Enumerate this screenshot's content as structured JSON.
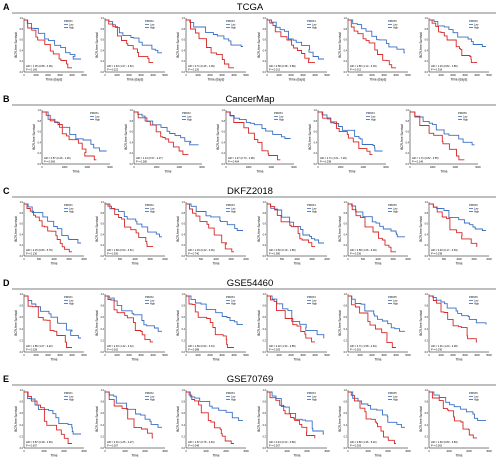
{
  "figure": {
    "rows": [
      {
        "letter": "A",
        "dataset": "TCGA",
        "x_ticks": [
          "0",
          "1000",
          "2000",
          "3000",
          "4000",
          "5000"
        ],
        "x_label": "Time (days)",
        "y_ticks": [
          "1.0",
          "0.8",
          "0.6",
          "0.4",
          "0.2",
          "0.0"
        ],
        "y_label": "BCR-free Survival",
        "panels": [
          {
            "gene": "PRDX1",
            "hr": "HR = 1.35 (0.88 - 2.06)",
            "p": "P = 0.166"
          },
          {
            "gene": "PRDX2",
            "hr": "HR = 1.64 (1.07 - 2.51)",
            "p": "P = 0.022"
          },
          {
            "gene": "PRDX3",
            "hr": "HR = 0.71 (0.46 - 1.09)",
            "p": "P = 0.120"
          },
          {
            "gene": "PRDX4",
            "hr": "HR = 0.58 (0.38 - 0.89)",
            "p": "P = 0.012"
          },
          {
            "gene": "PRDX5",
            "hr": "HR = 1.86 (1.14 - 3.03)",
            "p": "P = 0.012"
          },
          {
            "gene": "PRDX6",
            "hr": "HR = 1.23 (0.82 - 1.86)",
            "p": "P = 0.318"
          }
        ]
      },
      {
        "letter": "B",
        "dataset": "CancerMap",
        "x_ticks": [
          "0",
          "2000",
          "4000",
          "6000"
        ],
        "x_label": "Time",
        "y_ticks": [
          "1.0",
          "0.8",
          "0.6",
          "0.4",
          "0.2",
          "0.0"
        ],
        "y_label": "BCR-free Survival",
        "panels": [
          {
            "gene": "PRDX1",
            "hr": "HR = 0.57 (0.26 - 1.26)",
            "p": "P = 0.066"
          },
          {
            "gene": "PRDX2",
            "hr": "HR = 1.14 (0.57 - 2.27)",
            "p": "P = 0.280"
          },
          {
            "gene": "PRDX3",
            "hr": "HR = 1.47 (0.73 - 2.96)",
            "p": "P = 0.464"
          },
          {
            "gene": "PRDX4",
            "hr": "HR = 2.71 (1.01 - 7.29)",
            "p": "P = 0.038"
          },
          {
            "gene": "PRDX6",
            "hr": "HR = 1.71 (0.82 - 3.55)",
            "p": "P = 0.146"
          }
        ]
      },
      {
        "letter": "C",
        "dataset": "DKFZ2018",
        "x_ticks": [
          "0",
          "500",
          "1000",
          "1500",
          "2000"
        ],
        "x_label": "Time",
        "y_ticks": [
          "1.0",
          "0.8",
          "0.6",
          "0.4",
          "0.2",
          "0.0"
        ],
        "y_label": "BCR-free Survival",
        "panels": [
          {
            "gene": "PRDX1",
            "hr": "HR = 2.15 (0.80 - 5.79)",
            "p": "P = 0.130"
          },
          {
            "gene": "PRDX2",
            "hr": "HR = 1.69 (0.63 - 4.51)",
            "p": "P = 0.300"
          },
          {
            "gene": "PRDX3",
            "hr": "HR = 1.19 (0.42 - 3.36)",
            "p": "P = 0.740"
          },
          {
            "gene": "PRDX4",
            "hr": "HR = 0.60 (0.19 - 1.86)",
            "p": "P = 0.380"
          },
          {
            "gene": "PRDX5",
            "hr": "HR = 2.58 (1.06 - 6.29)",
            "p": "P = 0.036"
          },
          {
            "gene": "PRDX6",
            "hr": "HR = 0.40 (0.17 - 0.94)",
            "p": "P = 0.038"
          }
        ]
      },
      {
        "letter": "D",
        "dataset": "GSE54460",
        "x_ticks": [
          "0",
          "1000",
          "2000",
          "3000",
          "4000",
          "5000"
        ],
        "x_label": "Time",
        "y_ticks": [
          "1.0",
          "0.8",
          "0.6",
          "0.4",
          "0.2",
          "0.0"
        ],
        "y_label": "BCR-free Survival",
        "panels": [
          {
            "gene": "PRDX1",
            "hr": "HR = 1.85 (1.07 - 3.22)",
            "p": "P = 0.028"
          },
          {
            "gene": "PRDX2",
            "hr": "HR = 2.33 (1.42 - 4.12)",
            "p": "P = 0.002"
          },
          {
            "gene": "PRDX3",
            "hr": "HR = 1.69 (0.93 - 3.13)",
            "p": "P = 0.088"
          },
          {
            "gene": "PRDX4",
            "hr": "HR = 2.22 (1.34 - 3.85)",
            "p": "P = 0.003"
          },
          {
            "gene": "PRDX5",
            "hr": "HR = 2.71 (1.58 - 4.64)",
            "p": "P < 0.001"
          },
          {
            "gene": "PRDX6",
            "hr": "HR = 1.91 (1.03 - 3.28)",
            "p": "P = 0.030"
          }
        ]
      },
      {
        "letter": "E",
        "dataset": "GSE70769",
        "x_ticks": [
          "0",
          "1000",
          "2000",
          "3000"
        ],
        "x_label": "Time",
        "y_ticks": [
          "1.0",
          "0.8",
          "0.6",
          "0.4",
          "0.2",
          "0.0"
        ],
        "y_label": "BCR-free Survival",
        "panels": [
          {
            "gene": "PRDX1",
            "hr": "HR = 0.87 (0.48 - 1.60)",
            "p": "P = 0.657"
          },
          {
            "gene": "PRDX2",
            "hr": "HR = 2.31 (1.25 - 4.27)",
            "p": "P = 0.007"
          },
          {
            "gene": "PRDX3",
            "hr": "HR = 1.57 (0.76 - 2.46)",
            "p": "P = 0.049"
          },
          {
            "gene": "PRDX4",
            "hr": "HR = 0.44 (0.24 - 0.80)",
            "p": "P = 0.007"
          },
          {
            "gene": "PRDX5",
            "hr": "HR = 2.80 (1.36 - 5.22)",
            "p": "P = 0.003"
          },
          {
            "gene": "PRDX6",
            "hr": "HR = 1.60 (0.80 - 3.83)",
            "p": "P = 0.063"
          }
        ]
      }
    ],
    "legend": {
      "low": "Low",
      "high": "High"
    },
    "colors": {
      "low": "#3a6fc4",
      "high": "#d62828",
      "axis": "#000000",
      "text": "#000000"
    }
  }
}
